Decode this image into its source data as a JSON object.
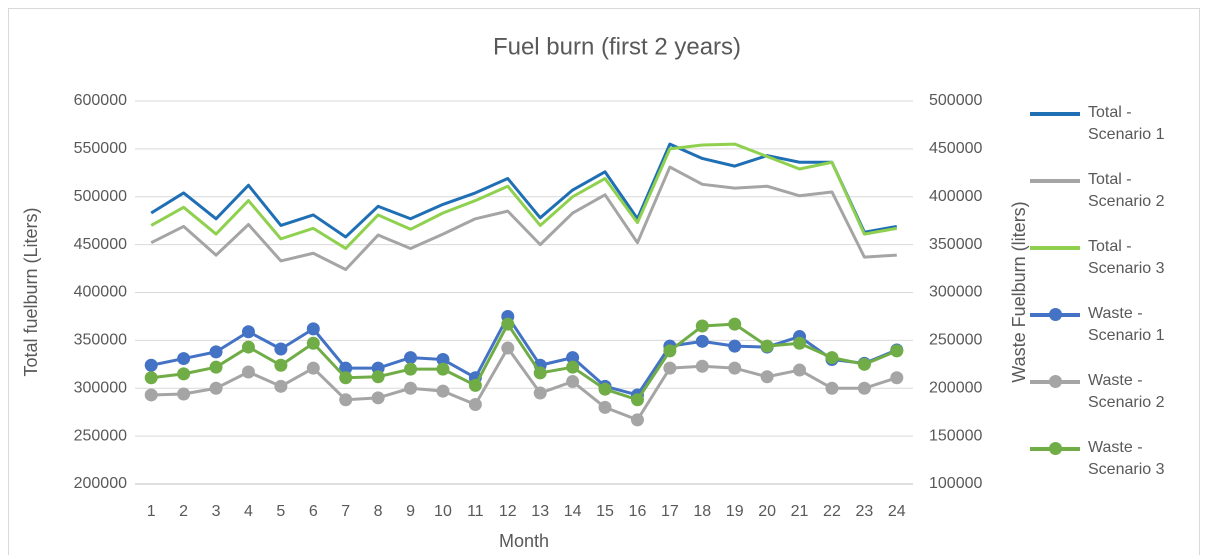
{
  "chart_data": {
    "type": "line",
    "title": "Fuel burn (first 2 years)",
    "x_label": "Month",
    "y_label": "Total fuelburn (Liters)",
    "y2_label": "Waste Fuelburn (liters)",
    "categories": [
      "1",
      "2",
      "3",
      "4",
      "5",
      "6",
      "7",
      "8",
      "9",
      "10",
      "11",
      "12",
      "13",
      "14",
      "15",
      "16",
      "17",
      "18",
      "19",
      "20",
      "21",
      "22",
      "23",
      "24"
    ],
    "ylim": [
      200000,
      600000
    ],
    "yticks": [
      200000,
      250000,
      300000,
      350000,
      400000,
      450000,
      500000,
      550000,
      600000
    ],
    "y2lim": [
      100000,
      500000
    ],
    "y2ticks": [
      100000,
      150000,
      200000,
      250000,
      300000,
      350000,
      400000,
      450000,
      500000
    ],
    "grid": true,
    "legend": "right",
    "series": [
      {
        "name": "Total - Scenario 1",
        "color": "#1f6fb5",
        "markers": false,
        "values": [
          483000,
          504000,
          477000,
          512000,
          470000,
          481000,
          458000,
          490000,
          477000,
          492000,
          504000,
          519000,
          478000,
          507000,
          526000,
          477000,
          555000,
          540000,
          532000,
          543000,
          536000,
          536000,
          463000,
          469000
        ]
      },
      {
        "name": "Total - Scenario 2",
        "color": "#a5a5a5",
        "markers": false,
        "values": [
          452000,
          469000,
          439000,
          471000,
          433000,
          441000,
          424000,
          460000,
          446000,
          461000,
          477000,
          485000,
          450000,
          483000,
          502000,
          452000,
          531000,
          513000,
          509000,
          511000,
          501000,
          505000,
          437000,
          439000
        ]
      },
      {
        "name": "Total - Scenario 3",
        "color": "#8fd14f",
        "markers": false,
        "values": [
          470000,
          489000,
          461000,
          496000,
          456000,
          467000,
          446000,
          481000,
          466000,
          483000,
          496000,
          511000,
          470000,
          500000,
          519000,
          473000,
          550000,
          554000,
          555000,
          542000,
          529000,
          536000,
          461000,
          467000
        ]
      },
      {
        "name": "Waste - Scenario 1",
        "color": "#4472c4",
        "markers": true,
        "axis": "y2",
        "values": [
          224000,
          231000,
          238000,
          259000,
          241000,
          262000,
          221000,
          221000,
          232000,
          230000,
          211000,
          275000,
          224000,
          232000,
          202000,
          193000,
          244000,
          249000,
          244000,
          243000,
          254000,
          230000,
          226000,
          240000
        ]
      },
      {
        "name": "Waste - Scenario 2",
        "color": "#a5a5a5",
        "markers": true,
        "axis": "y2",
        "values": [
          193000,
          194000,
          200000,
          217000,
          202000,
          221000,
          188000,
          190000,
          200000,
          197000,
          183000,
          242000,
          195000,
          207000,
          180000,
          167000,
          221000,
          223000,
          221000,
          212000,
          219000,
          200000,
          200000,
          211000
        ]
      },
      {
        "name": "Waste - Scenario 3",
        "color": "#70ad47",
        "markers": true,
        "axis": "y2",
        "values": [
          211000,
          215000,
          222000,
          243000,
          224000,
          247000,
          211000,
          212000,
          220000,
          220000,
          203000,
          267000,
          216000,
          222000,
          199000,
          188000,
          239000,
          265000,
          267000,
          244000,
          247000,
          232000,
          225000,
          239000
        ]
      }
    ]
  }
}
